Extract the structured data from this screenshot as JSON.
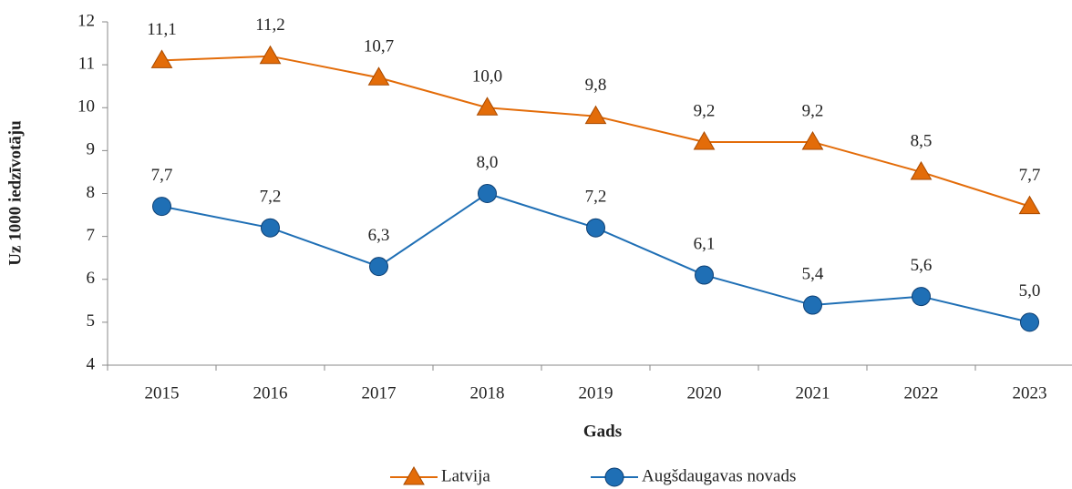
{
  "chart_data": {
    "type": "line",
    "categories": [
      "2015",
      "2016",
      "2017",
      "2018",
      "2019",
      "2020",
      "2021",
      "2022",
      "2023"
    ],
    "series": [
      {
        "name": "Latvija",
        "color": "#e36c09",
        "marker": "triangle",
        "values": [
          11.1,
          11.2,
          10.7,
          10.0,
          9.8,
          9.2,
          9.2,
          8.5,
          7.7
        ],
        "value_labels": [
          "11,1",
          "11,2",
          "10,7",
          "10,0",
          "9,8",
          "9,2",
          "9,2",
          "8,5",
          "7,7"
        ]
      },
      {
        "name": "Augšdaugavas novads",
        "color": "#1f6fb5",
        "marker": "circle",
        "values": [
          7.7,
          7.2,
          6.3,
          8.0,
          7.2,
          6.1,
          5.4,
          5.6,
          5.0
        ],
        "value_labels": [
          "7,7",
          "7,2",
          "6,3",
          "8,0",
          "7,2",
          "6,1",
          "5,4",
          "5,6",
          "5,0"
        ]
      }
    ],
    "xlabel": "Gads",
    "ylabel": "Uz 1000 iedzīvotāju",
    "ylim": [
      4,
      12
    ],
    "yticks": [
      4,
      5,
      6,
      7,
      8,
      9,
      10,
      11,
      12
    ],
    "legend": "bottom"
  }
}
